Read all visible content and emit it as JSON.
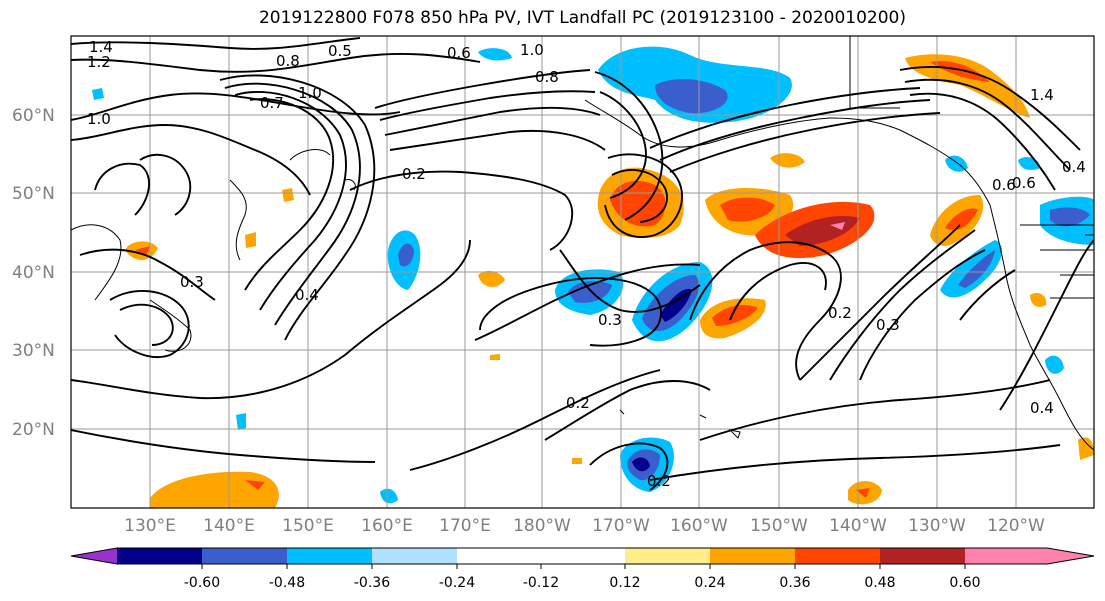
{
  "title": "2019122800 F078 850 hPa PV, IVT Landfall PC (2019123100 - 2020010200)",
  "lat_labels": [
    "60°N",
    "50°N",
    "40°N",
    "30°N",
    "20°N"
  ],
  "lon_labels": [
    "130°E",
    "140°E",
    "150°E",
    "160°E",
    "170°E",
    "180°W",
    "170°W",
    "160°W",
    "150°W",
    "140°W",
    "130°W",
    "120°W"
  ],
  "contour_labels": [
    "1.4",
    "1.2",
    "1.0",
    "0.5",
    "0.8",
    "0.6",
    "1.0",
    "0.8",
    "0.7",
    "1.0",
    "0.6",
    "0.2",
    "0.3",
    "0.4",
    "0.3",
    "0.2",
    "0.2",
    "0.3",
    "0.2",
    "0.4",
    "0.6",
    "1.4",
    "0.4"
  ],
  "colorbar": {
    "ticks": [
      "-0.60",
      "-0.48",
      "-0.36",
      "-0.24",
      "-0.12",
      "0.12",
      "0.24",
      "0.36",
      "0.48",
      "0.60"
    ],
    "colors": [
      "#9932cc",
      "#00008b",
      "#3a5fcd",
      "#00bfff",
      "#b0e2ff",
      "#ffffff",
      "#ffec8b",
      "#ffa500",
      "#ff4500",
      "#b22222",
      "#ff82ab"
    ]
  }
}
